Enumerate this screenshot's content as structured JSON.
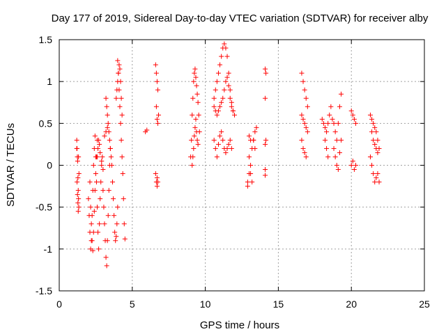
{
  "chart_data": {
    "type": "scatter",
    "title": "Day 177 of 2019, Sidereal Day-to-day VTEC variation (SDTVAR) for receiver alby",
    "xlabel": "GPS time / hours",
    "ylabel": "SDTVAR / TECUs",
    "xlim": [
      0,
      25
    ],
    "ylim": [
      -1.5,
      1.5
    ],
    "xticks": [
      "0",
      "5",
      "10",
      "15",
      "20",
      "25"
    ],
    "yticks": [
      "-1.5",
      "-1",
      "-0.5",
      "0",
      "0.5",
      "1",
      "1.5"
    ],
    "grid": true,
    "marker": "+",
    "color": "#ff0000",
    "series": [
      {
        "name": "SDTVAR",
        "x": [
          1.2,
          1.22,
          1.24,
          1.26,
          1.28,
          1.3,
          1.32,
          1.34,
          1.2,
          1.22,
          1.25,
          1.28,
          1.3,
          1.32,
          1.35,
          2.0,
          2.05,
          2.1,
          2.15,
          2.2,
          2.25,
          2.3,
          2.35,
          2.4,
          2.45,
          2.5,
          2.55,
          2.6,
          2.65,
          2.7,
          2.75,
          2.8,
          2.85,
          2.9,
          2.95,
          2.1,
          2.15,
          2.2,
          2.25,
          2.3,
          2.35,
          2.4,
          2.45,
          2.5,
          2.55,
          2.6,
          3.0,
          3.05,
          3.1,
          3.15,
          3.2,
          3.25,
          3.3,
          3.35,
          3.4,
          3.45,
          3.5,
          3.2,
          3.25,
          3.3,
          3.35,
          3.4,
          3.45,
          3.5,
          3.55,
          3.6,
          3.65,
          3.7,
          3.75,
          3.8,
          3.85,
          3.9,
          3.95,
          4.0,
          4.0,
          4.05,
          4.1,
          4.15,
          4.2,
          4.25,
          4.3,
          4.35,
          4.4,
          4.45,
          4.5,
          3.9,
          3.95,
          4.0,
          4.05,
          4.1,
          4.15,
          4.2,
          4.25,
          4.3,
          2.6,
          2.65,
          2.7,
          2.75,
          2.8,
          2.9,
          3.0,
          3.1,
          3.2,
          3.3,
          5.9,
          6.0,
          6.6,
          6.65,
          6.7,
          6.75,
          6.8,
          6.65,
          6.7,
          6.75,
          6.6,
          6.65,
          6.7,
          6.7,
          6.75,
          9.0,
          9.05,
          9.1,
          9.15,
          9.2,
          9.25,
          9.3,
          9.35,
          9.4,
          9.45,
          9.5,
          9.55,
          9.6,
          9.1,
          9.15,
          9.2,
          9.25,
          9.3,
          9.35,
          9.4,
          9.45,
          9.5,
          10.6,
          10.7,
          10.8,
          10.9,
          11.0,
          11.1,
          11.2,
          11.3,
          11.4,
          11.5,
          11.6,
          11.7,
          11.8,
          11.9,
          12.0,
          10.6,
          10.7,
          10.8,
          10.9,
          11.0,
          11.1,
          11.2,
          11.3,
          11.4,
          11.5,
          11.6,
          11.7,
          11.8,
          11.9,
          10.6,
          10.7,
          10.8,
          10.9,
          11.0,
          11.1,
          11.2,
          11.3,
          11.4,
          11.5,
          11.6,
          11.7,
          11.8,
          12.9,
          13.0,
          13.1,
          13.2,
          13.3,
          13.4,
          13.5,
          13.0,
          13.1,
          13.2,
          13.3,
          13.4,
          12.9,
          13.0,
          13.1,
          14.1,
          14.15,
          14.1,
          14.1,
          14.15,
          14.1,
          14.1,
          16.6,
          16.7,
          16.8,
          16.9,
          17.0,
          16.6,
          16.7,
          16.8,
          16.9,
          17.0,
          16.6,
          16.7,
          16.8,
          16.9,
          18.0,
          18.1,
          18.2,
          18.3,
          18.4,
          18.5,
          18.6,
          18.7,
          18.8,
          18.9,
          19.0,
          19.1,
          19.2,
          19.3,
          18.8,
          18.9,
          19.0,
          19.1,
          19.2,
          19.3,
          18.2,
          18.3,
          18.4,
          20.0,
          20.1,
          20.2,
          20.3,
          20.0,
          20.1,
          20.2,
          20.3,
          21.3,
          21.4,
          21.5,
          21.6,
          21.7,
          21.8,
          21.9,
          21.3,
          21.4,
          21.5,
          21.6,
          21.7,
          21.8,
          21.9,
          21.4,
          21.5,
          21.6,
          21.7,
          21.8
        ],
        "y": [
          0.3,
          0.2,
          0.1,
          0.05,
          -0.15,
          -0.3,
          -0.4,
          -0.5,
          0.2,
          -0.2,
          -0.35,
          -0.45,
          -0.55,
          0.1,
          -0.1,
          -0.4,
          -0.6,
          -0.8,
          -1.0,
          -0.9,
          -0.6,
          -0.3,
          0.0,
          0.2,
          0.35,
          0.1,
          -0.2,
          -0.5,
          -0.8,
          -1.0,
          -0.7,
          -0.4,
          -0.2,
          0.0,
          0.1,
          -0.2,
          -0.5,
          -0.7,
          -0.9,
          -1.02,
          -0.8,
          -0.55,
          -0.3,
          -0.1,
          0.1,
          0.3,
          -0.3,
          -0.5,
          -0.7,
          -0.9,
          -1.1,
          -1.2,
          -0.9,
          -0.6,
          -0.3,
          0.0,
          0.2,
          0.8,
          0.7,
          0.6,
          0.5,
          0.4,
          0.3,
          0.2,
          0.1,
          0.0,
          -0.2,
          -0.4,
          -0.6,
          -0.8,
          -0.9,
          -0.85,
          -0.7,
          -0.5,
          1.25,
          1.1,
          0.9,
          0.7,
          0.5,
          0.3,
          0.1,
          -0.1,
          -0.4,
          -0.7,
          -0.88,
          0.8,
          0.9,
          1.0,
          1.1,
          1.2,
          1.15,
          1.0,
          0.8,
          0.6,
          0.1,
          0.2,
          0.3,
          0.25,
          0.15,
          0.05,
          -0.05,
          0.35,
          0.4,
          0.45,
          0.4,
          0.42,
          1.2,
          1.1,
          1.0,
          0.9,
          0.6,
          0.7,
          0.55,
          0.5,
          -0.1,
          -0.2,
          -0.25,
          -0.15,
          -0.2,
          0.1,
          0.3,
          0.6,
          0.8,
          1.0,
          1.1,
          1.15,
          1.05,
          0.95,
          0.85,
          0.75,
          0.6,
          0.4,
          0.0,
          0.1,
          0.2,
          0.35,
          0.45,
          0.55,
          0.4,
          0.3,
          0.25,
          0.8,
          0.9,
          1.0,
          1.1,
          1.2,
          1.3,
          1.4,
          1.45,
          1.4,
          1.3,
          1.1,
          0.9,
          0.75,
          0.65,
          0.6,
          0.7,
          0.65,
          0.6,
          0.65,
          0.7,
          0.75,
          0.8,
          0.9,
          1.0,
          1.05,
          0.95,
          0.8,
          0.7,
          0.65,
          0.3,
          0.2,
          0.1,
          0.25,
          0.35,
          0.4,
          0.3,
          0.2,
          0.15,
          0.2,
          0.25,
          0.3,
          0.2,
          -0.2,
          -0.1,
          0.0,
          0.2,
          0.3,
          0.4,
          0.45,
          0.1,
          -0.1,
          -0.2,
          0.3,
          0.2,
          -0.25,
          0.35,
          0.3,
          1.15,
          1.1,
          0.8,
          0.25,
          0.3,
          -0.05,
          -0.12,
          1.1,
          1.0,
          0.9,
          0.8,
          0.7,
          0.6,
          0.55,
          0.5,
          0.45,
          0.4,
          0.3,
          0.2,
          0.15,
          0.1,
          0.55,
          0.5,
          0.45,
          0.4,
          0.5,
          0.6,
          0.7,
          0.55,
          0.5,
          0.4,
          0.3,
          0.5,
          0.7,
          0.85,
          0.2,
          0.1,
          0.0,
          -0.05,
          0.15,
          0.3,
          0.3,
          0.2,
          0.1,
          0.65,
          0.6,
          0.55,
          0.5,
          0.0,
          0.05,
          -0.05,
          0.0,
          0.6,
          0.55,
          0.5,
          0.45,
          0.4,
          0.3,
          0.2,
          0.1,
          0.0,
          -0.1,
          -0.2,
          -0.15,
          -0.1,
          -0.2,
          0.4,
          0.3,
          0.25,
          0.2,
          0.15
        ]
      }
    ]
  }
}
